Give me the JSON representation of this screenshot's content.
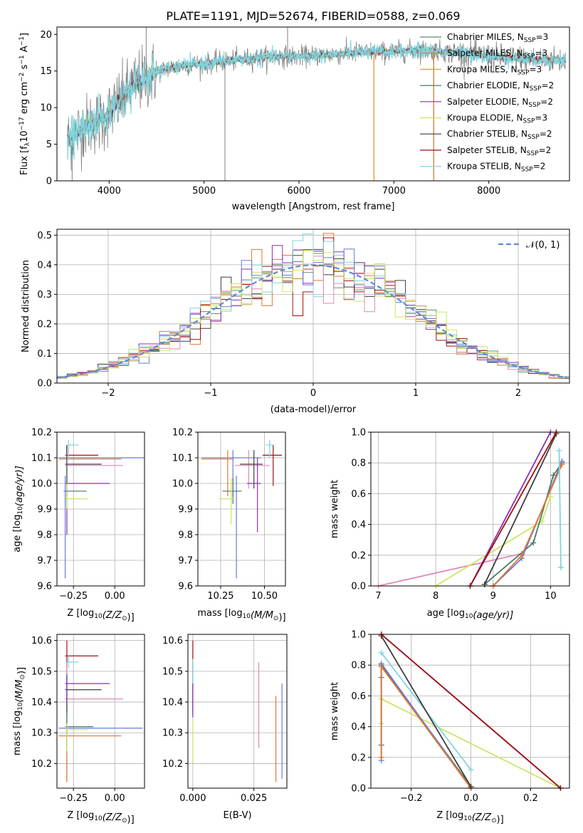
{
  "title": "PLATE=1191, MJD=52674, FIBERID=0588, z=0.069",
  "colors": {
    "chabrier_miles": "#5f8f6b",
    "salpeter_miles": "#e07a2f",
    "kroupa_miles": "#e89a3a",
    "chabrier_elodie": "#4a7a66",
    "salpeter_elodie": "#8b2fb0",
    "kroupa_elodie": "#d6e060",
    "chabrier_stelib": "#3d3d3d",
    "salpeter_stelib": "#a01010",
    "kroupa_stelib": "#7fd6e0",
    "extra_pink": "#e088b8",
    "extra_blue": "#6a7ad8",
    "extra_lime": "#c8e860",
    "spectrum": "#808080"
  },
  "chart_data": [
    {
      "type": "line",
      "title": "PLATE=1191, MJD=52674, FIBERID=0588, z=0.069",
      "xlabel": "wavelength [Angstrom, rest frame]",
      "ylabel": "Flux [f_λ10^-17 erg cm^-2 s^-1 A^-1]",
      "xlim": [
        3450,
        8850
      ],
      "ylim": [
        0,
        21
      ],
      "xticks": [
        "4000",
        "5000",
        "6000",
        "7000",
        "8000"
      ],
      "yticks": [
        "0",
        "5",
        "10",
        "15",
        "20"
      ],
      "legend": [
        {
          "label": "Chabrier MILES, N_SSP=3",
          "color": "#5f8f6b"
        },
        {
          "label": "Salpeter MILES, N_SSP=3",
          "color": "#e07a2f"
        },
        {
          "label": "Kroupa MILES, N_SSP=3",
          "color": "#e89a3a"
        },
        {
          "label": "Chabrier ELODIE, N_SSP=2",
          "color": "#4a7a66"
        },
        {
          "label": "Salpeter ELODIE, N_SSP=2",
          "color": "#8b2fb0"
        },
        {
          "label": "Kroupa ELODIE, N_SSP=3",
          "color": "#d6e060"
        },
        {
          "label": "Chabrier STELIB, N_SSP=2",
          "color": "#3d3d3d"
        },
        {
          "label": "Salpeter STELIB, N_SSP=2",
          "color": "#a01010"
        },
        {
          "label": "Kroupa STELIB, N_SSP=2",
          "color": "#7fd6e0"
        }
      ],
      "legend_position": "right",
      "grid": false,
      "spectrum_anchors": {
        "x": [
          3560,
          3650,
          3750,
          3850,
          3950,
          4050,
          4150,
          4300,
          4450,
          4600,
          4800,
          5000,
          5200,
          5400,
          5600,
          5800,
          6000,
          6200,
          6400,
          6600,
          6800,
          7000,
          7200,
          7400,
          7600,
          7800,
          8000,
          8200,
          8400,
          8600,
          8800
        ],
        "y": [
          5.5,
          6.5,
          7.5,
          8.0,
          8.5,
          10.0,
          11.5,
          13.5,
          14.5,
          15.3,
          15.8,
          16.0,
          16.3,
          16.6,
          16.8,
          17.0,
          17.0,
          17.1,
          17.3,
          17.5,
          17.6,
          17.6,
          17.8,
          17.8,
          17.5,
          17.3,
          17.0,
          16.8,
          16.6,
          16.5,
          16.5
        ]
      },
      "spikes": [
        {
          "x": 3610,
          "y": 0
        },
        {
          "x": 4390,
          "y": 21
        },
        {
          "x": 5220,
          "y": 0
        },
        {
          "x": 5880,
          "y": 21
        },
        {
          "x": 6790,
          "y": 0
        },
        {
          "x": 7420,
          "y": 0
        }
      ]
    },
    {
      "type": "histogram",
      "xlabel": "(data-model)/error",
      "ylabel": "Normed distribution",
      "xlim": [
        -2.5,
        2.5
      ],
      "ylim": [
        0,
        0.52
      ],
      "xticks": [
        "-2",
        "-1",
        "0",
        "1",
        "2"
      ],
      "yticks": [
        "0.0",
        "0.1",
        "0.2",
        "0.3",
        "0.4",
        "0.5"
      ],
      "grid": true,
      "bin_width": 0.1,
      "legend": [
        {
          "label": "𝒩(0, 1)",
          "color": "#5b8ad8"
        }
      ],
      "legend_position": "top-right",
      "series_colors": [
        "#5f8f6b",
        "#e07a2f",
        "#8b2fb0",
        "#d6e060",
        "#3d3d3d",
        "#a01010",
        "#7fd6e0",
        "#6a7ad8",
        "#e088b8",
        "#c8e860"
      ]
    },
    {
      "type": "scatter",
      "xlabel": "Z [log10(Z/Z☉)]",
      "ylabel": "age  [log10(age/yr)]",
      "xlim": [
        -0.35,
        0.18
      ],
      "ylim": [
        9.6,
        10.2
      ],
      "xticks": [
        {
          "v": -0.25,
          "t": "−0.25"
        },
        {
          "v": 0.0,
          "t": "0.00"
        }
      ],
      "yticks": [
        {
          "v": 9.6,
          "t": "9.6"
        },
        {
          "v": 9.7,
          "t": "9.7"
        },
        {
          "v": 9.8,
          "t": "9.8"
        },
        {
          "v": 9.9,
          "t": "9.9"
        },
        {
          "v": 10.0,
          "t": "10.0"
        },
        {
          "v": 10.1,
          "t": "10.1"
        },
        {
          "v": 10.2,
          "t": "10.2"
        }
      ],
      "grid": true,
      "points": [
        {
          "x": -0.29,
          "y": 10.1,
          "xl": -0.34,
          "xh": 0.18,
          "yl": 9.95,
          "yh": 10.15,
          "c": "#6a7ad8"
        },
        {
          "x": -0.29,
          "y": 10.095,
          "xl": -0.34,
          "xh": 0.04,
          "yl": 9.95,
          "yh": 10.15,
          "c": "#e07a2f"
        },
        {
          "x": -0.29,
          "y": 10.11,
          "xl": -0.3,
          "xh": -0.1,
          "yl": 10.0,
          "yh": 10.15,
          "c": "#a01010"
        },
        {
          "x": -0.29,
          "y": 10.07,
          "xl": -0.3,
          "xh": 0.05,
          "yl": 10.0,
          "yh": 10.13,
          "c": "#e088b8"
        },
        {
          "x": -0.29,
          "y": 10.075,
          "xl": -0.3,
          "xh": -0.08,
          "yl": 10.0,
          "yh": 10.14,
          "c": "#3d3d3d"
        },
        {
          "x": -0.28,
          "y": 10.15,
          "xl": -0.29,
          "xh": -0.22,
          "yl": 10.1,
          "yh": 10.17,
          "c": "#7fd6e0"
        },
        {
          "x": -0.29,
          "y": 10.0,
          "xl": -0.3,
          "xh": -0.03,
          "yl": 9.8,
          "yh": 10.12,
          "c": "#8b2fb0"
        },
        {
          "x": -0.29,
          "y": 9.97,
          "xl": -0.3,
          "xh": -0.17,
          "yl": 9.9,
          "yh": 10.1,
          "c": "#4a7a66"
        },
        {
          "x": -0.29,
          "y": 9.94,
          "xl": -0.3,
          "xh": -0.16,
          "yl": 9.9,
          "yh": 10.0,
          "c": "#c8e860"
        },
        {
          "x": -0.3,
          "y": 9.97,
          "xl": -0.31,
          "xh": -0.28,
          "yl": 9.63,
          "yh": 10.03,
          "c": "#6a7ad8"
        }
      ]
    },
    {
      "type": "scatter",
      "xlabel": "mass [log10(M/M☉)]",
      "ylabel": "",
      "xlim": [
        10.12,
        10.62
      ],
      "ylim": [
        9.6,
        10.2
      ],
      "xticks": [
        {
          "v": 10.25,
          "t": "10.25"
        },
        {
          "v": 10.5,
          "t": "10.50"
        }
      ],
      "yticks": [
        {
          "v": 9.6,
          "t": "9.6"
        },
        {
          "v": 9.7,
          "t": "9.7"
        },
        {
          "v": 9.8,
          "t": "9.8"
        },
        {
          "v": 9.9,
          "t": "9.9"
        },
        {
          "v": 10.0,
          "t": "10.0"
        },
        {
          "v": 10.1,
          "t": "10.1"
        },
        {
          "v": 10.2,
          "t": "10.2"
        }
      ],
      "grid": true,
      "points": [
        {
          "x": 10.32,
          "y": 10.1,
          "xl": 10.14,
          "xh": 10.48,
          "yl": 9.95,
          "yh": 10.13,
          "c": "#6a7ad8"
        },
        {
          "x": 10.29,
          "y": 10.095,
          "xl": 10.14,
          "xh": 10.32,
          "yl": 9.95,
          "yh": 10.13,
          "c": "#e07a2f"
        },
        {
          "x": 10.55,
          "y": 10.11,
          "xl": 10.49,
          "xh": 10.6,
          "yl": 9.99,
          "yh": 10.15,
          "c": "#a01010"
        },
        {
          "x": 10.41,
          "y": 10.07,
          "xl": 10.33,
          "xh": 10.53,
          "yl": 9.98,
          "yh": 10.13,
          "c": "#e088b8"
        },
        {
          "x": 10.44,
          "y": 10.075,
          "xl": 10.36,
          "xh": 10.49,
          "yl": 9.98,
          "yh": 10.13,
          "c": "#3d3d3d"
        },
        {
          "x": 10.53,
          "y": 10.15,
          "xl": 10.51,
          "xh": 10.55,
          "yl": 10.1,
          "yh": 10.17,
          "c": "#7fd6e0"
        },
        {
          "x": 10.46,
          "y": 10.0,
          "xl": 10.4,
          "xh": 10.48,
          "yl": 9.81,
          "yh": 10.1,
          "c": "#8b2fb0"
        },
        {
          "x": 10.32,
          "y": 9.97,
          "xl": 10.26,
          "xh": 10.37,
          "yl": 9.92,
          "yh": 10.02,
          "c": "#4a7a66"
        },
        {
          "x": 10.31,
          "y": 9.94,
          "xl": 10.24,
          "xh": 10.33,
          "yl": 9.84,
          "yh": 10.02,
          "c": "#c8e860"
        },
        {
          "x": 10.34,
          "y": 9.97,
          "xl": 10.33,
          "xh": 10.35,
          "yl": 9.63,
          "yh": 10.03,
          "c": "#6a7ad8"
        }
      ]
    },
    {
      "type": "line",
      "xlabel": "age  [log10(age/yr)]",
      "ylabel": "mass weight",
      "xlim": [
        6.87,
        10.33
      ],
      "ylim": [
        0,
        1
      ],
      "xticks": [
        {
          "v": 7,
          "t": "7"
        },
        {
          "v": 8,
          "t": "8"
        },
        {
          "v": 9,
          "t": "9"
        },
        {
          "v": 10,
          "t": "10"
        }
      ],
      "yticks": [
        {
          "v": 0,
          "t": "0.0"
        },
        {
          "v": 0.2,
          "t": "0.2"
        },
        {
          "v": 0.4,
          "t": "0.4"
        },
        {
          "v": 0.6,
          "t": "0.6"
        },
        {
          "v": 0.8,
          "t": "0.8"
        },
        {
          "v": 1,
          "t": "1.0"
        }
      ],
      "grid": true,
      "series": [
        {
          "c": "#e088b8",
          "x": [
            7.0,
            9.5
          ],
          "y": [
            0.0,
            0.21
          ]
        },
        {
          "c": "#c8e860",
          "x": [
            8.0,
            9.85,
            10.0
          ],
          "y": [
            0.0,
            0.42,
            0.58
          ]
        },
        {
          "c": "#4a7a66",
          "x": [
            8.85,
            9.7,
            10.05,
            10.2
          ],
          "y": [
            0.01,
            0.28,
            0.72,
            0.8
          ]
        },
        {
          "c": "#3d3d3d",
          "x": [
            8.85,
            10.1
          ],
          "y": [
            0.01,
            0.99
          ]
        },
        {
          "c": "#8b2fb0",
          "x": [
            8.6,
            10.0
          ],
          "y": [
            0.0,
            1.0
          ]
        },
        {
          "c": "#a01010",
          "x": [
            8.6,
            10.1
          ],
          "y": [
            0.0,
            1.0
          ]
        },
        {
          "c": "#6a7ad8",
          "x": [
            9.0,
            9.5,
            10.2
          ],
          "y": [
            0.0,
            0.18,
            0.81
          ]
        },
        {
          "c": "#e07a2f",
          "x": [
            9.0,
            9.5,
            10.2
          ],
          "y": [
            0.0,
            0.2,
            0.79
          ]
        },
        {
          "c": "#7fd6e0",
          "x": [
            10.18,
            10.15,
            10.18
          ],
          "y": [
            0.12,
            0.88,
            0.12
          ]
        }
      ]
    },
    {
      "type": "scatter",
      "xlabel": "Z [log10(Z/Z☉)]",
      "ylabel": "mass [log10(M/M☉)]",
      "xlim": [
        -0.35,
        0.18
      ],
      "ylim": [
        10.12,
        10.62
      ],
      "xticks": [
        {
          "v": -0.25,
          "t": "−0.25"
        },
        {
          "v": 0.0,
          "t": "0.00"
        }
      ],
      "yticks": [
        {
          "v": 10.2,
          "t": "10.2"
        },
        {
          "v": 10.3,
          "t": "10.3"
        },
        {
          "v": 10.4,
          "t": "10.4"
        },
        {
          "v": 10.5,
          "t": "10.5"
        },
        {
          "v": 10.6,
          "t": "10.6"
        }
      ],
      "grid": true,
      "points": [
        {
          "x": -0.29,
          "y": 10.315,
          "xl": -0.34,
          "xh": 0.17,
          "yl": 10.14,
          "yh": 10.48,
          "c": "#6a7ad8"
        },
        {
          "x": -0.29,
          "y": 10.29,
          "xl": -0.34,
          "xh": 0.04,
          "yl": 10.14,
          "yh": 10.32,
          "c": "#e07a2f"
        },
        {
          "x": -0.29,
          "y": 10.55,
          "xl": -0.3,
          "xh": -0.1,
          "yl": 10.49,
          "yh": 10.6,
          "c": "#a01010"
        },
        {
          "x": -0.29,
          "y": 10.41,
          "xl": -0.3,
          "xh": 0.05,
          "yl": 10.33,
          "yh": 10.53,
          "c": "#e088b8"
        },
        {
          "x": -0.29,
          "y": 10.44,
          "xl": -0.3,
          "xh": -0.08,
          "yl": 10.36,
          "yh": 10.49,
          "c": "#3d3d3d"
        },
        {
          "x": -0.28,
          "y": 10.53,
          "xl": -0.29,
          "xh": -0.22,
          "yl": 10.51,
          "yh": 10.55,
          "c": "#7fd6e0"
        },
        {
          "x": -0.29,
          "y": 10.46,
          "xl": -0.3,
          "xh": -0.03,
          "yl": 10.4,
          "yh": 10.48,
          "c": "#8b2fb0"
        },
        {
          "x": -0.29,
          "y": 10.32,
          "xl": -0.3,
          "xh": -0.13,
          "yl": 10.26,
          "yh": 10.37,
          "c": "#4a7a66"
        },
        {
          "x": -0.29,
          "y": 10.31,
          "xl": -0.3,
          "xh": -0.16,
          "yl": 10.24,
          "yh": 10.33,
          "c": "#c8e860"
        }
      ]
    },
    {
      "type": "scatter",
      "xlabel": "E(B-V)",
      "ylabel": "",
      "xlim": [
        -0.002,
        0.0385
      ],
      "ylim": [
        10.12,
        10.62
      ],
      "xticks": [
        {
          "v": 0.0,
          "t": "0.000"
        },
        {
          "v": 0.025,
          "t": "0.025"
        }
      ],
      "yticks": [
        {
          "v": 10.2,
          "t": "10.2"
        },
        {
          "v": 10.3,
          "t": "10.3"
        },
        {
          "v": 10.4,
          "t": "10.4"
        },
        {
          "v": 10.5,
          "t": "10.5"
        },
        {
          "v": 10.6,
          "t": "10.6"
        }
      ],
      "grid": true,
      "points": [
        {
          "x": 0.0,
          "y": 10.55,
          "xl": 0.0,
          "xh": 0.0,
          "yl": 10.49,
          "yh": 10.6,
          "c": "#a01010"
        },
        {
          "x": 0.0,
          "y": 10.44,
          "xl": 0.0,
          "xh": 0.0,
          "yl": 10.36,
          "yh": 10.49,
          "c": "#3d3d3d"
        },
        {
          "x": 0.0,
          "y": 10.5,
          "xl": 0.0,
          "xh": 0.0,
          "yl": 10.46,
          "yh": 10.54,
          "c": "#7fd6e0"
        },
        {
          "x": 0.0,
          "y": 10.31,
          "xl": 0.0,
          "xh": 0.0,
          "yl": 10.2,
          "yh": 10.34,
          "c": "#c8e860"
        },
        {
          "x": 0.0,
          "y": 10.42,
          "xl": 0.0,
          "xh": 0.0,
          "yl": 10.35,
          "yh": 10.46,
          "c": "#8b2fb0"
        },
        {
          "x": 0.027,
          "y": 10.4,
          "xl": 0.027,
          "xh": 0.027,
          "yl": 10.25,
          "yh": 10.53,
          "c": "#e088b8"
        },
        {
          "x": 0.034,
          "y": 10.29,
          "xl": 0.034,
          "xh": 0.034,
          "yl": 10.14,
          "yh": 10.42,
          "c": "#e07a2f"
        },
        {
          "x": 0.0365,
          "y": 10.31,
          "xl": 0.0365,
          "xh": 0.0365,
          "yl": 10.15,
          "yh": 10.46,
          "c": "#6a7ad8"
        }
      ]
    },
    {
      "type": "line",
      "xlabel": "Z [log10(Z/Z☉)]",
      "ylabel": "mass weight",
      "xlim": [
        -0.335,
        0.33
      ],
      "ylim": [
        0,
        1
      ],
      "xticks": [
        {
          "v": -0.2,
          "t": "−0.2"
        },
        {
          "v": 0.0,
          "t": "0.0"
        },
        {
          "v": 0.2,
          "t": "0.2"
        }
      ],
      "yticks": [
        {
          "v": 0,
          "t": "0.0"
        },
        {
          "v": 0.2,
          "t": "0.2"
        },
        {
          "v": 0.4,
          "t": "0.4"
        },
        {
          "v": 0.6,
          "t": "0.6"
        },
        {
          "v": 0.8,
          "t": "0.8"
        },
        {
          "v": 1,
          "t": "1.0"
        }
      ],
      "grid": true,
      "series": [
        {
          "c": "#c8e860",
          "x": [
            -0.3,
            -0.3,
            0.3
          ],
          "y": [
            0.42,
            0.58,
            0.0
          ]
        },
        {
          "c": "#4a7a66",
          "x": [
            -0.3,
            -0.3,
            -0.3,
            0.0
          ],
          "y": [
            0.28,
            0.72,
            0.8,
            0.01
          ]
        },
        {
          "c": "#7fd6e0",
          "x": [
            -0.3,
            0.0
          ],
          "y": [
            0.88,
            0.12
          ]
        },
        {
          "c": "#6a7ad8",
          "x": [
            -0.3,
            -0.3,
            0.0
          ],
          "y": [
            0.18,
            0.81,
            0.0
          ]
        },
        {
          "c": "#e07a2f",
          "x": [
            -0.3,
            -0.3,
            0.0
          ],
          "y": [
            0.2,
            0.79,
            0.0
          ]
        },
        {
          "c": "#3d3d3d",
          "x": [
            -0.3,
            0.0
          ],
          "y": [
            0.99,
            0.01
          ]
        },
        {
          "c": "#8b2fb0",
          "x": [
            -0.3,
            0.3
          ],
          "y": [
            1.0,
            0.0
          ]
        },
        {
          "c": "#a01010",
          "x": [
            -0.3,
            0.3
          ],
          "y": [
            1.0,
            0.0
          ]
        }
      ]
    }
  ]
}
